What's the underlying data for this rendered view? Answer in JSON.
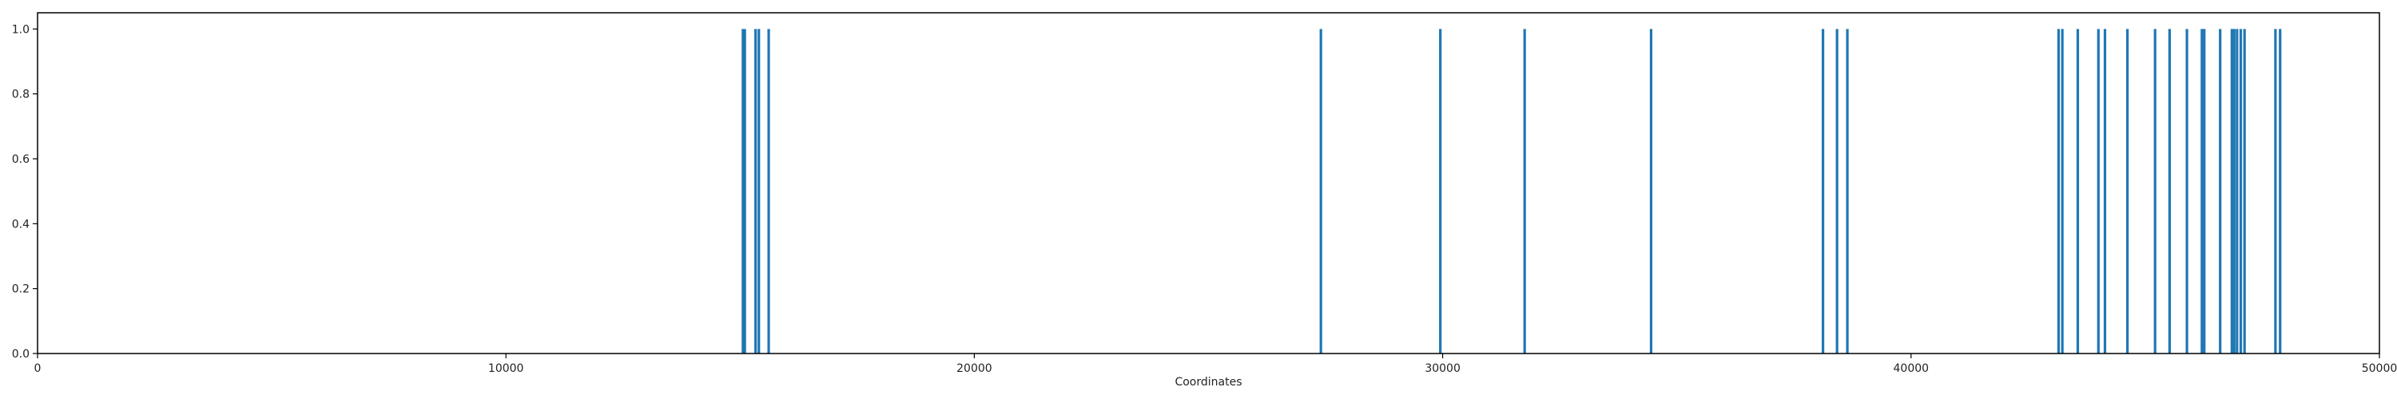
{
  "chart_data": {
    "type": "bar",
    "title": "",
    "xlabel": "Coordinates",
    "ylabel": "",
    "xlim": [
      0,
      50000
    ],
    "ylim": [
      0,
      1.05
    ],
    "grid": false,
    "x_ticks": [
      0,
      10000,
      20000,
      30000,
      40000,
      50000
    ],
    "y_ticks": [
      0.0,
      0.2,
      0.4,
      0.6,
      0.8,
      1.0
    ],
    "x_tick_labels": [
      "0",
      "10000",
      "20000",
      "30000",
      "40000",
      "50000"
    ],
    "y_tick_labels": [
      "0.0",
      "0.2",
      "0.4",
      "0.6",
      "0.8",
      "1.0"
    ],
    "colors": {
      "bar": "#1f77b4",
      "axis": "#000000",
      "text": "#222222"
    },
    "series": [
      {
        "x": [
          15060,
          15100,
          15330,
          15400,
          15610,
          27400,
          29950,
          31750,
          34450,
          38120,
          38420,
          38640,
          43150,
          43230,
          43560,
          44000,
          44140,
          44620,
          45210,
          45520,
          45890,
          46210,
          46260,
          46600,
          46850,
          46900,
          46960,
          47040,
          47120,
          47780,
          47880
        ],
        "values": [
          1,
          1,
          1,
          1,
          1,
          1,
          1,
          1,
          1,
          1,
          1,
          1,
          1,
          1,
          1,
          1,
          1,
          1,
          1,
          1,
          1,
          1,
          1,
          1,
          1,
          1,
          1,
          1,
          1,
          1,
          1
        ]
      }
    ]
  }
}
